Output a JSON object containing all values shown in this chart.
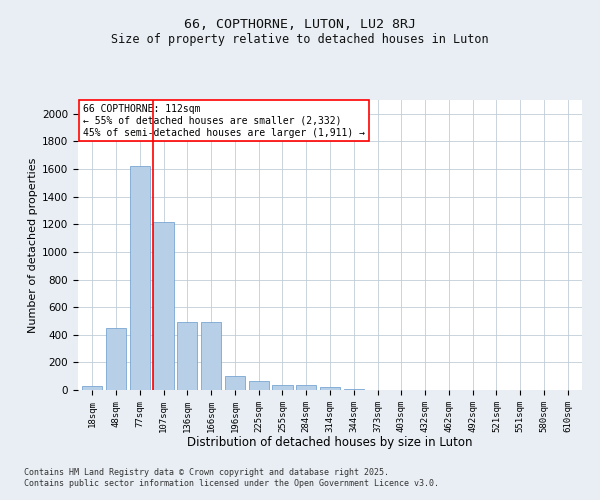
{
  "title1": "66, COPTHORNE, LUTON, LU2 8RJ",
  "title2": "Size of property relative to detached houses in Luton",
  "xlabel": "Distribution of detached houses by size in Luton",
  "ylabel": "Number of detached properties",
  "categories": [
    "18sqm",
    "48sqm",
    "77sqm",
    "107sqm",
    "136sqm",
    "166sqm",
    "196sqm",
    "225sqm",
    "255sqm",
    "284sqm",
    "314sqm",
    "344sqm",
    "373sqm",
    "403sqm",
    "432sqm",
    "462sqm",
    "492sqm",
    "521sqm",
    "551sqm",
    "580sqm",
    "610sqm"
  ],
  "values": [
    30,
    450,
    1620,
    1220,
    490,
    490,
    100,
    65,
    35,
    35,
    20,
    5,
    0,
    0,
    0,
    0,
    0,
    0,
    0,
    0,
    0
  ],
  "bar_color": "#b8cfe8",
  "bar_edge_color": "#6699cc",
  "vline_color": "red",
  "annotation_text": "66 COPTHORNE: 112sqm\n← 55% of detached houses are smaller (2,332)\n45% of semi-detached houses are larger (1,911) →",
  "annotation_box_color": "white",
  "annotation_box_edge": "red",
  "ylim": [
    0,
    2100
  ],
  "yticks": [
    0,
    200,
    400,
    600,
    800,
    1000,
    1200,
    1400,
    1600,
    1800,
    2000
  ],
  "footer1": "Contains HM Land Registry data © Crown copyright and database right 2025.",
  "footer2": "Contains public sector information licensed under the Open Government Licence v3.0.",
  "bg_color": "#e8eef4",
  "plot_bg_color": "#ffffff",
  "grid_color": "#c0cdd8"
}
